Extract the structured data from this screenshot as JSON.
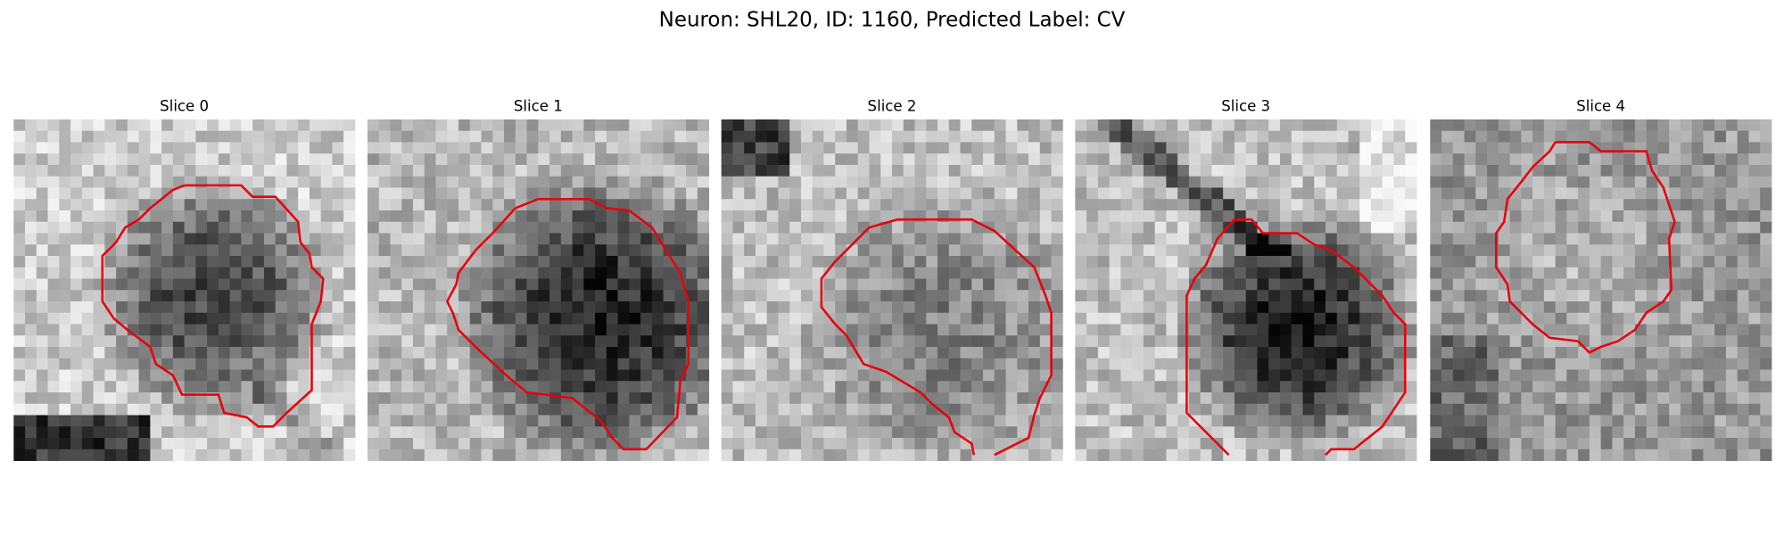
{
  "title": "Neuron: SHL20, ID: 1160, Predicted Label: CV",
  "panels": [
    {
      "title": "Slice 0"
    },
    {
      "title": "Slice 1"
    },
    {
      "title": "Slice 2"
    },
    {
      "title": "Slice 3"
    },
    {
      "title": "Slice 4"
    }
  ]
}
